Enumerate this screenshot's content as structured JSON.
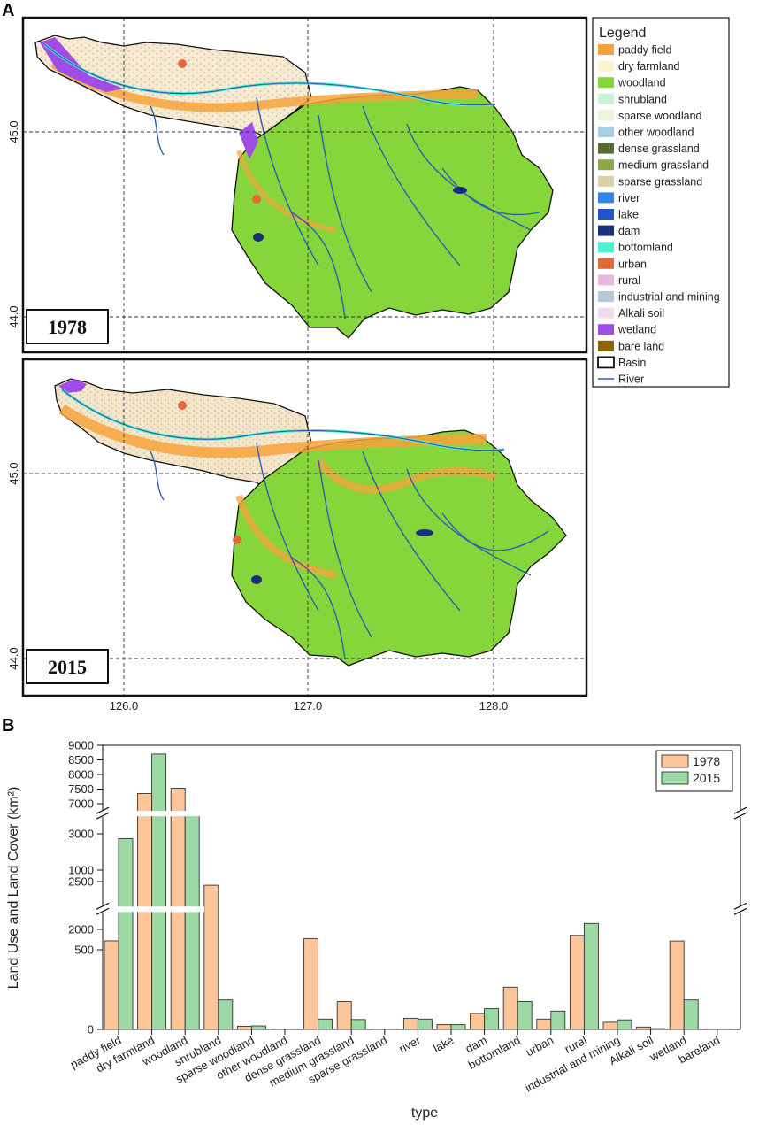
{
  "panel_a": {
    "letter": "A",
    "maps": [
      {
        "year": "1978"
      },
      {
        "year": "2015"
      }
    ],
    "lat_ticks": [
      "45.0",
      "44.0"
    ],
    "lon_ticks": [
      "126.0",
      "127.0",
      "128.0"
    ],
    "legend": {
      "title": "Legend",
      "items": [
        {
          "label": "paddy field",
          "color": "#F7A23C"
        },
        {
          "label": "dry farmland",
          "color": "#FCF3CF"
        },
        {
          "label": "woodland",
          "color": "#86D63B"
        },
        {
          "label": "shrubland",
          "color": "#C9F2D8"
        },
        {
          "label": "sparse woodland",
          "color": "#EAF5D9"
        },
        {
          "label": "other woodland",
          "color": "#A9CFE3"
        },
        {
          "label": "dense grassland",
          "color": "#556B2F"
        },
        {
          "label": "medium grassland",
          "color": "#8BA74B"
        },
        {
          "label": "sparse grassland",
          "color": "#D9D1A6"
        },
        {
          "label": "river",
          "color": "#2E86E6"
        },
        {
          "label": "lake",
          "color": "#2255C8"
        },
        {
          "label": "dam",
          "color": "#1B2E7A"
        },
        {
          "label": "bottomland",
          "color": "#4EF2D2"
        },
        {
          "label": "urban",
          "color": "#E2693A"
        },
        {
          "label": "rural",
          "color": "#E7B8DB"
        },
        {
          "label": "industrial and mining",
          "color": "#B3C8DB"
        },
        {
          "label": "Alkali soil",
          "color": "#EFDCEF"
        },
        {
          "label": "wetland",
          "color": "#A14CE6"
        },
        {
          "label": "bare land",
          "color": "#8B6508"
        },
        {
          "label": "Basin",
          "color": "#FFFFFF"
        },
        {
          "label": "River",
          "color": "#2E5FAF"
        }
      ]
    }
  },
  "panel_b": {
    "letter": "B"
  },
  "chart_data": {
    "type": "bar",
    "xlabel": "type",
    "ylabel": "Land Use and Land Cover (km²)",
    "y_axis_breaks": [
      {
        "range": [
          0,
          1000
        ],
        "ticks": [
          0,
          500,
          1000
        ]
      },
      {
        "range": [
          1800,
          3200
        ],
        "ticks": [
          2000,
          2500,
          3000
        ]
      },
      {
        "range": [
          6700,
          9000
        ],
        "ticks": [
          7000,
          7500,
          8000,
          8500,
          9000
        ]
      }
    ],
    "legend_position": "top-right",
    "categories": [
      "paddy field",
      "dry farmland",
      "woodland",
      "shrubland",
      "sparse woodland",
      "other woodland",
      "dense grassland",
      "medium grassland",
      "sparse grassland",
      "river",
      "lake",
      "dam",
      "bottomland",
      "urban",
      "rural",
      "industrial and mining",
      "Alkali soil",
      "wetland",
      "bareland"
    ],
    "series": [
      {
        "name": "1978",
        "color": "#FCC69A",
        "values": [
          1880,
          7350,
          7530,
          905,
          20,
          3,
          570,
          175,
          3,
          70,
          30,
          100,
          265,
          65,
          590,
          45,
          15,
          555,
          2
        ]
      },
      {
        "name": "2015",
        "color": "#9DD9A5",
        "values": [
          2950,
          8700,
          6640,
          185,
          22,
          2,
          65,
          62,
          2,
          65,
          30,
          130,
          175,
          115,
          665,
          60,
          5,
          185,
          2
        ]
      }
    ]
  }
}
